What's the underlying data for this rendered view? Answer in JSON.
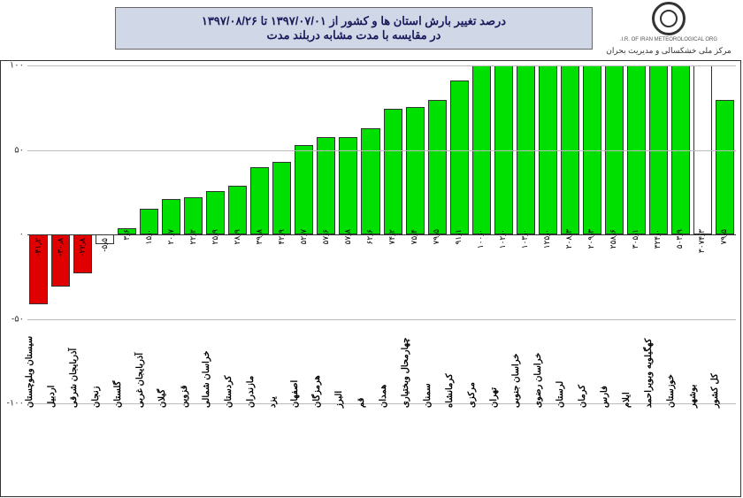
{
  "header": {
    "title_line1": "درصد تغییر بارش استان ها و کشور از  ۱۳۹۷/۰۷/۰۱ تا ۱۳۹۷/۰۸/۲۶",
    "title_line2": "در مقایسه با مدت مشابه دربلند مدت",
    "org_name": "مرکز ملی خشکسالی و مدیریت بحران",
    "logo_small": "I.R. OF IRAN METEOROLOGICAL ORG."
  },
  "chart": {
    "type": "bar",
    "ylim": [
      -100,
      100
    ],
    "yticks": [
      -100,
      -50,
      0,
      50,
      100
    ],
    "ytick_labels": [
      "-۱۰۰",
      "-۵۰",
      "۰",
      "۵۰",
      "۱۰۰"
    ],
    "grid_color": "#bbbbbb",
    "positive_color": "#00e000",
    "negative_color": "#e00000",
    "gap_color": "#ffffff",
    "border_color": "#333333",
    "bar_border": "#000000",
    "series": [
      {
        "label": "سیستان وبلوچستان",
        "value": -41.2,
        "display": "-۴۱٫۲"
      },
      {
        "label": "اردبیل",
        "value": -30.8,
        "display": "-۳۰٫۸"
      },
      {
        "label": "آذربایجان شرقی",
        "value": -22.8,
        "display": "-۲۲٫۸"
      },
      {
        "label": "زنجان",
        "value": -5.5,
        "display": "-۵٫۵",
        "white": true
      },
      {
        "label": "گلستان",
        "value": 3.6,
        "display": "۳٫۶"
      },
      {
        "label": "آذربایجان غربی",
        "value": 15.0,
        "display": "۱۵٫۰"
      },
      {
        "label": "گیلان",
        "value": 20.7,
        "display": "۲۰٫۷"
      },
      {
        "label": "قزوین",
        "value": 22.2,
        "display": "۲۲٫۲"
      },
      {
        "label": "خراسان شمالی",
        "value": 25.9,
        "display": "۲۵٫۹"
      },
      {
        "label": "کردستان",
        "value": 28.9,
        "display": "۲۸٫۹"
      },
      {
        "label": "مازندران",
        "value": 39.8,
        "display": "۳۹٫۸"
      },
      {
        "label": "یزد",
        "value": 42.9,
        "display": "۴۲٫۹"
      },
      {
        "label": "اصفهان",
        "value": 52.7,
        "display": "۵۲٫۷"
      },
      {
        "label": "هرمزگان",
        "value": 57.6,
        "display": "۵۷٫۶"
      },
      {
        "label": "البرز",
        "value": 57.8,
        "display": "۵۷٫۸"
      },
      {
        "label": "قم",
        "value": 62.6,
        "display": "۶۲٫۶"
      },
      {
        "label": "همدان",
        "value": 74.2,
        "display": "۷۴٫۲"
      },
      {
        "label": "چهارمحال وبختیاری",
        "value": 75.4,
        "display": "۷۵٫۴"
      },
      {
        "label": "سمنان",
        "value": 79.5,
        "display": "۷۹٫۵"
      },
      {
        "label": "کرمانشاه",
        "value": 91.1,
        "display": "۹۱٫۱"
      },
      {
        "label": "مرکزی",
        "value": 100,
        "display": "۱۰۰٫۰"
      },
      {
        "label": "تهران",
        "value": 100,
        "display": "۱۰۲٫۰"
      },
      {
        "label": "خراسان جنوبی",
        "value": 100,
        "display": "۱۰۳٫۰"
      },
      {
        "label": "خراسان رضوی",
        "value": 100,
        "display": "۱۲۵٫۰"
      },
      {
        "label": "لرستان",
        "value": 100,
        "display": "۲۰۸٫۳"
      },
      {
        "label": "کرمان",
        "value": 100,
        "display": "۲۰۹٫۳"
      },
      {
        "label": "فارس",
        "value": 100,
        "display": "۲۵۸٫۶"
      },
      {
        "label": "ایلام",
        "value": 100,
        "display": "۳۰۵٫۱"
      },
      {
        "label": "کهگیلویه وبویراحمد",
        "value": 100,
        "display": "۳۲۴٫۰"
      },
      {
        "label": "خوزستان",
        "value": 100,
        "display": "۵۰۳٫۹"
      },
      {
        "label": "بوشهر",
        "value": 100,
        "display": "۳۰۷۴٫۳",
        "white": true
      },
      {
        "label": "کل کشور",
        "value": 79.5,
        "display": "۷۹٫۵"
      }
    ]
  }
}
